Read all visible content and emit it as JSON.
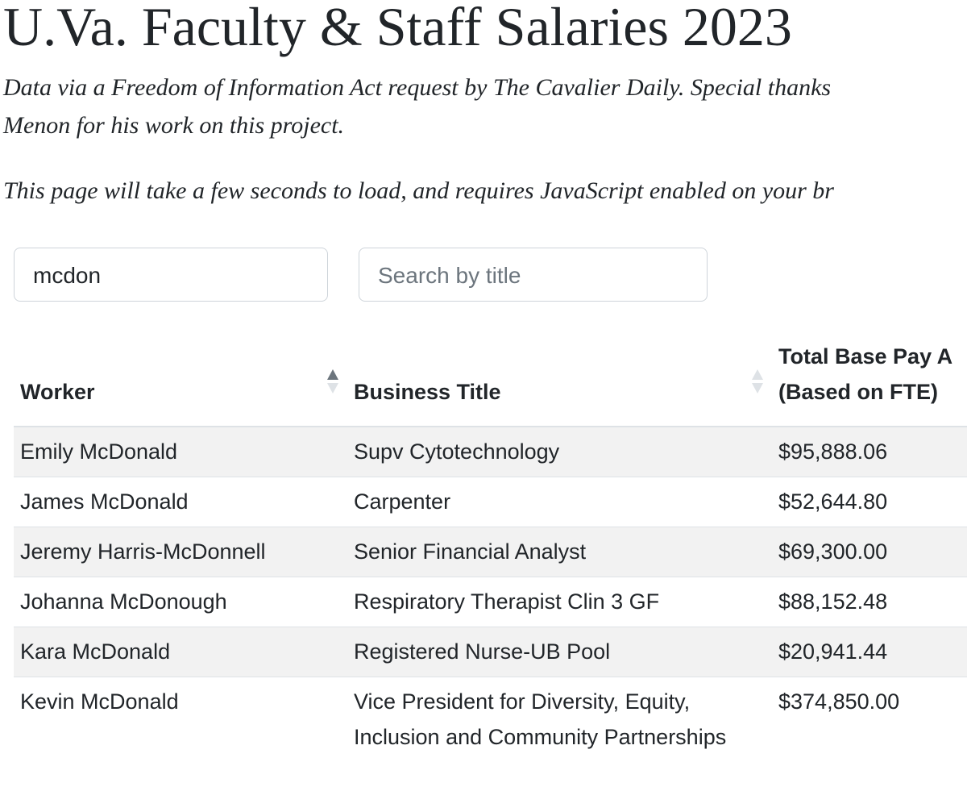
{
  "header": {
    "title": "U.Va. Faculty & Staff Salaries 2023",
    "intro_lines": [
      "Data via a Freedom of Information Act request by The Cavalier Daily. Special thanks",
      "Menon for his work on this project."
    ],
    "note": "This page will take a few seconds to load, and requires JavaScript enabled on your br"
  },
  "search": {
    "name_value": "mcdon",
    "title_placeholder": "Search by title"
  },
  "table": {
    "columns": [
      [
        "Worker"
      ],
      [
        "Business Title"
      ],
      [
        "Total Base Pay A",
        "(Based on FTE)"
      ]
    ],
    "rows": [
      [
        "Emily McDonald",
        "Supv Cytotechnology",
        "$95,888.06"
      ],
      [
        "James McDonald",
        "Carpenter",
        "$52,644.80"
      ],
      [
        "Jeremy Harris-McDonnell",
        "Senior Financial Analyst",
        "$69,300.00"
      ],
      [
        "Johanna McDonough",
        "Respiratory Therapist Clin 3 GF",
        "$88,152.48"
      ],
      [
        "Kara McDonald",
        "Registered Nurse-UB Pool",
        "$20,941.44"
      ],
      [
        "Kevin McDonald",
        "Vice President for Diversity, Equity, Inclusion and Community Partnerships",
        "$374,850.00"
      ]
    ]
  }
}
